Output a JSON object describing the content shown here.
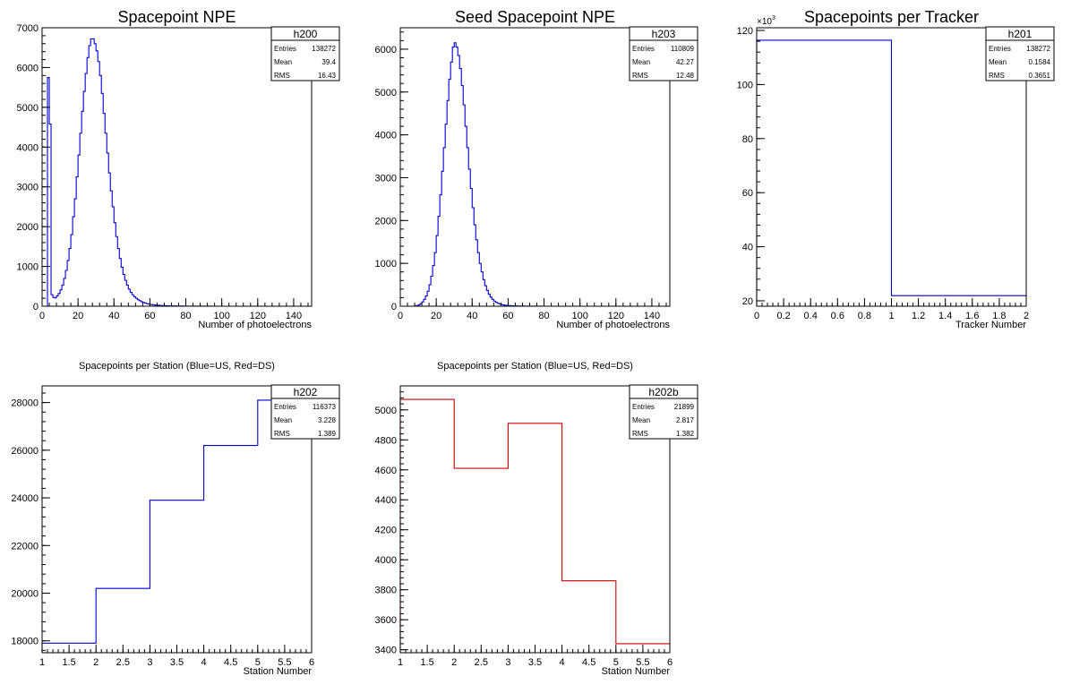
{
  "chart_data": [
    {
      "id": "h200",
      "type": "histogram",
      "title": "Spacepoint NPE",
      "xlabel": "Number of photoelectrons",
      "ylabel": "",
      "xlim": [
        0,
        150
      ],
      "ylim": [
        0,
        7000
      ],
      "xticks": [
        0,
        20,
        40,
        60,
        80,
        100,
        120,
        140
      ],
      "yticks": [
        0,
        1000,
        2000,
        3000,
        4000,
        5000,
        6000,
        7000
      ],
      "y_exponent": "",
      "color": "#0000cc",
      "grid": false,
      "stats": {
        "name": "h200",
        "rows": [
          [
            "Entries",
            "138272"
          ],
          [
            "Mean",
            "39.4"
          ],
          [
            "RMS",
            "16.43"
          ]
        ]
      },
      "bin_edges_start": 3,
      "bin_width": 1,
      "values": [
        5750,
        4580,
        290,
        220,
        210,
        260,
        320,
        410,
        530,
        700,
        900,
        1150,
        1450,
        1800,
        2250,
        2700,
        3250,
        3800,
        4350,
        4900,
        5400,
        5850,
        6250,
        6550,
        6720,
        6720,
        6600,
        6420,
        6150,
        5800,
        5350,
        4850,
        4350,
        3850,
        3350,
        2900,
        2500,
        2100,
        1750,
        1450,
        1200,
        980,
        800,
        650,
        530,
        430,
        350,
        290,
        240,
        200,
        165,
        140,
        115,
        95,
        80,
        65,
        55,
        45,
        38,
        32,
        27,
        23,
        20,
        17,
        15,
        13,
        11,
        10,
        9,
        8,
        7,
        6,
        5,
        5,
        4,
        4,
        3,
        3,
        3,
        2,
        2,
        2,
        2,
        1,
        1,
        1,
        1,
        1,
        1,
        1,
        1,
        1,
        0,
        0,
        0,
        0,
        0,
        0,
        0,
        0,
        0,
        0,
        0,
        0,
        0,
        0,
        0,
        0,
        0,
        0,
        0,
        0,
        0,
        0,
        0,
        0,
        0,
        0,
        0,
        0,
        0,
        0,
        0,
        0,
        0,
        0,
        0,
        0,
        0,
        0,
        0,
        0,
        0,
        0,
        0,
        0,
        0,
        0,
        0,
        0,
        0,
        0,
        0,
        0,
        0,
        0
      ]
    },
    {
      "id": "h203",
      "type": "histogram",
      "title": "Seed Spacepoint NPE",
      "xlabel": "Number of photoelectrons",
      "ylabel": "",
      "xlim": [
        0,
        150
      ],
      "ylim": [
        0,
        6500
      ],
      "xticks": [
        0,
        20,
        40,
        60,
        80,
        100,
        120,
        140
      ],
      "yticks": [
        0,
        1000,
        2000,
        3000,
        4000,
        5000,
        6000
      ],
      "y_exponent": "",
      "color": "#0000cc",
      "grid": false,
      "stats": {
        "name": "h203",
        "rows": [
          [
            "Entries",
            "110809"
          ],
          [
            "Mean",
            "42.27"
          ],
          [
            "RMS",
            "12.48"
          ]
        ]
      },
      "bin_edges_start": 3,
      "bin_width": 1,
      "values": [
        0,
        0,
        0,
        0,
        0,
        5,
        15,
        30,
        60,
        100,
        160,
        240,
        350,
        500,
        700,
        950,
        1250,
        1650,
        2100,
        2600,
        3150,
        3700,
        4250,
        4800,
        5300,
        5700,
        6050,
        6150,
        6050,
        5850,
        5550,
        5150,
        4700,
        4200,
        3700,
        3200,
        2750,
        2300,
        1900,
        1550,
        1250,
        1000,
        800,
        620,
        480,
        370,
        280,
        210,
        160,
        120,
        90,
        68,
        52,
        40,
        30,
        23,
        18,
        14,
        11,
        9,
        7,
        6,
        5,
        4,
        3,
        3,
        2,
        2,
        2,
        1,
        1,
        1,
        1,
        1,
        1,
        1,
        0,
        0,
        0,
        0,
        0,
        0,
        0,
        0,
        0,
        0,
        0,
        0,
        0,
        0,
        0,
        0,
        0,
        0,
        0,
        0,
        0,
        0,
        0,
        0,
        0,
        0,
        0,
        0,
        0,
        0,
        0,
        0,
        0,
        0,
        0,
        0,
        0,
        0,
        0,
        0,
        0,
        0,
        0,
        0,
        0,
        0,
        0,
        0,
        0,
        0,
        0,
        0,
        0,
        0,
        0,
        0,
        0,
        0,
        0,
        0,
        0,
        0,
        0,
        0,
        0,
        0,
        0,
        0,
        0,
        0,
        0
      ]
    },
    {
      "id": "h201",
      "type": "histogram",
      "title": "Spacepoints per Tracker",
      "xlabel": "Tracker Number",
      "ylabel": "",
      "xlim": [
        0,
        2
      ],
      "ylim": [
        18,
        121
      ],
      "xticks": [
        0,
        0.2,
        0.4,
        0.6,
        0.8,
        1,
        1.2,
        1.4,
        1.6,
        1.8,
        2
      ],
      "xtick_labels": [
        "0",
        "0.2",
        "0.4",
        "0.6",
        "0.8",
        "1",
        "1.2",
        "1.4",
        "1.6",
        "1.8",
        "2"
      ],
      "yticks": [
        20,
        40,
        60,
        80,
        100,
        120
      ],
      "y_exponent": "×10",
      "y_exponent_power": "3",
      "color": "#0000cc",
      "grid": false,
      "stats": {
        "name": "h201",
        "rows": [
          [
            "Entries",
            "138272"
          ],
          [
            "Mean",
            "0.1584"
          ],
          [
            "RMS",
            "0.3651"
          ]
        ]
      },
      "bin_edges_start": 0,
      "bin_width": 1,
      "values": [
        116.373,
        21.899
      ]
    },
    {
      "id": "h202",
      "type": "histogram",
      "title": "Spacepoints per Station (Blue=US, Red=DS)",
      "xlabel": "Station Number",
      "ylabel": "",
      "xlim": [
        1,
        6
      ],
      "ylim": [
        17500,
        28700
      ],
      "xticks": [
        1,
        1.5,
        2,
        2.5,
        3,
        3.5,
        4,
        4.5,
        5,
        5.5,
        6
      ],
      "xtick_labels": [
        "1",
        "1.5",
        "2",
        "2.5",
        "3",
        "3.5",
        "4",
        "4.5",
        "5",
        "5.5",
        "6"
      ],
      "yticks": [
        18000,
        20000,
        22000,
        24000,
        26000,
        28000
      ],
      "y_exponent": "",
      "color": "#0000cc",
      "grid": false,
      "stats": {
        "name": "h202",
        "rows": [
          [
            "Entries",
            "116373"
          ],
          [
            "Mean",
            "3.228"
          ],
          [
            "RMS",
            "1.389"
          ]
        ]
      },
      "bin_edges_start": 1,
      "bin_width": 1,
      "values": [
        17900,
        20200,
        23900,
        26200,
        28100
      ]
    },
    {
      "id": "h202b",
      "type": "histogram",
      "title": "Spacepoints per Station (Blue=US, Red=DS)",
      "xlabel": "Station Number",
      "ylabel": "",
      "xlim": [
        1,
        6
      ],
      "ylim": [
        3380,
        5160
      ],
      "xticks": [
        1,
        1.5,
        2,
        2.5,
        3,
        3.5,
        4,
        4.5,
        5,
        5.5,
        6
      ],
      "xtick_labels": [
        "1",
        "1.5",
        "2",
        "2.5",
        "3",
        "3.5",
        "4",
        "4.5",
        "5",
        "5.5",
        "6"
      ],
      "yticks": [
        3400,
        3600,
        3800,
        4000,
        4200,
        4400,
        4600,
        4800,
        5000
      ],
      "y_exponent": "",
      "color": "#cc0000",
      "grid": false,
      "stats": {
        "name": "h202b",
        "rows": [
          [
            "Entries",
            "21899"
          ],
          [
            "Mean",
            "2.817"
          ],
          [
            "RMS",
            "1.382"
          ]
        ]
      },
      "bin_edges_start": 1,
      "bin_width": 1,
      "values": [
        5070,
        4610,
        4910,
        3860,
        3440
      ]
    }
  ]
}
